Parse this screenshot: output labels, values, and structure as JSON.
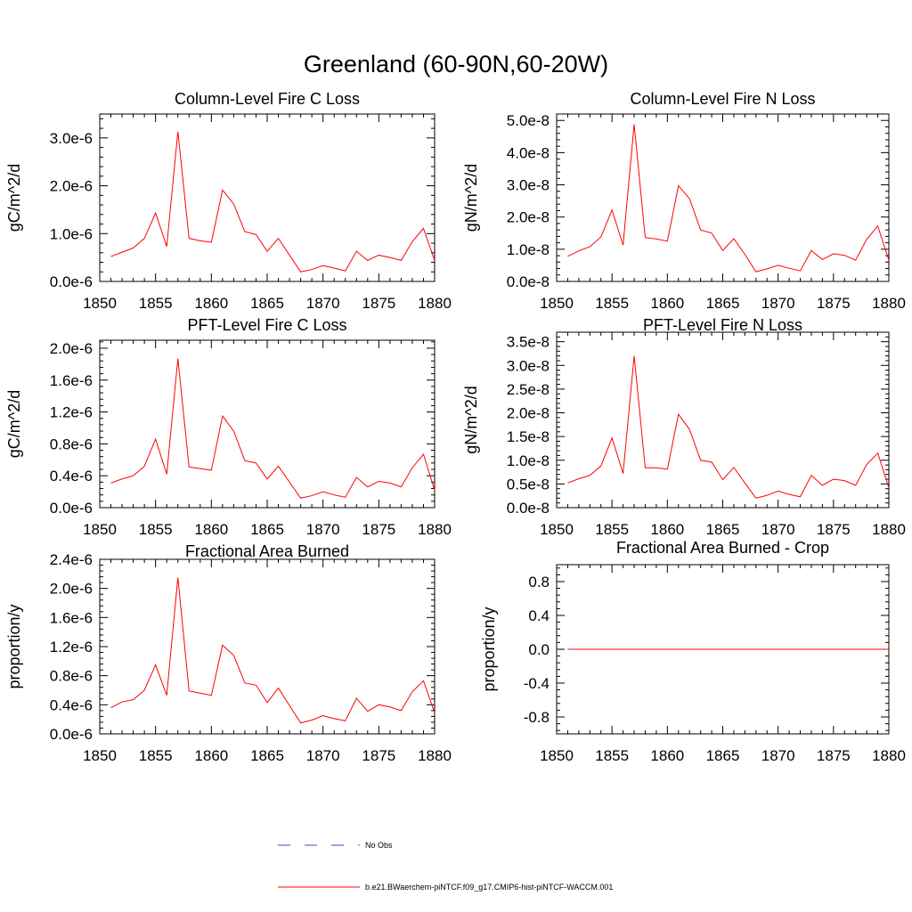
{
  "figure": {
    "title": "Greenland (60-90N,60-20W)"
  },
  "legend": {
    "entries": [
      {
        "label": "No Obs",
        "color": "#3b4bc8",
        "style": "dashed"
      },
      {
        "label": "b.e21.BWaerchem-piNTCF.f09_g17.CMIP6-hist-piNTCF-WACCM.001",
        "color": "#ff0000",
        "style": "solid"
      }
    ]
  },
  "chart_data": [
    {
      "type": "line",
      "title": "Column-Level Fire C Loss",
      "ylabel": "gC/m^2/d",
      "xlim": [
        1850,
        1880
      ],
      "ylim": [
        0,
        3.5e-06
      ],
      "xticks": [
        1850,
        1855,
        1860,
        1865,
        1870,
        1875,
        1880
      ],
      "yticks": [
        0,
        1e-06,
        2e-06,
        3e-06
      ],
      "ytick_labels": [
        "0.0e-6",
        "1.0e-6",
        "2.0e-6",
        "3.0e-6"
      ],
      "x": [
        1851,
        1852,
        1853,
        1854,
        1855,
        1856,
        1857,
        1858,
        1859,
        1860,
        1861,
        1862,
        1863,
        1864,
        1865,
        1866,
        1867,
        1868,
        1869,
        1870,
        1871,
        1872,
        1873,
        1874,
        1875,
        1876,
        1877,
        1878,
        1879,
        1880
      ],
      "series": [
        {
          "color": "#ff0000",
          "values": [
            5.2e-07,
            6.1e-07,
            7e-07,
            9e-07,
            1.43e-06,
            7.3e-07,
            3.13e-06,
            9e-07,
            8.5e-07,
            8.2e-07,
            1.91e-06,
            1.62e-06,
            1.04e-06,
            9.8e-07,
            6.3e-07,
            9e-07,
            5.5e-07,
            2e-07,
            2.5e-07,
            3.3e-07,
            2.8e-07,
            2.2e-07,
            6.3e-07,
            4.4e-07,
            5.5e-07,
            5e-07,
            4.4e-07,
            8.3e-07,
            1.11e-06,
            4.4e-07
          ]
        }
      ]
    },
    {
      "type": "line",
      "title": "Column-Level Fire N Loss",
      "ylabel": "gN/m^2/d",
      "xlim": [
        1850,
        1880
      ],
      "ylim": [
        0,
        5.2e-08
      ],
      "xticks": [
        1850,
        1855,
        1860,
        1865,
        1870,
        1875,
        1880
      ],
      "yticks": [
        0,
        1e-08,
        2e-08,
        3e-08,
        4e-08,
        5e-08
      ],
      "ytick_labels": [
        "0.0e-8",
        "1.0e-8",
        "2.0e-8",
        "3.0e-8",
        "4.0e-8",
        "5.0e-8"
      ],
      "x": [
        1851,
        1852,
        1853,
        1854,
        1855,
        1856,
        1857,
        1858,
        1859,
        1860,
        1861,
        1862,
        1863,
        1864,
        1865,
        1866,
        1867,
        1868,
        1869,
        1870,
        1871,
        1872,
        1873,
        1874,
        1875,
        1876,
        1877,
        1878,
        1879,
        1880
      ],
      "series": [
        {
          "color": "#ff0000",
          "values": [
            7.8e-09,
            9.5e-09,
            1.08e-08,
            1.38e-08,
            2.22e-08,
            1.13e-08,
            4.88e-08,
            1.36e-08,
            1.32e-08,
            1.25e-08,
            2.97e-08,
            2.57e-08,
            1.6e-08,
            1.5e-08,
            9.6e-09,
            1.33e-08,
            8.4e-09,
            3e-09,
            3.9e-09,
            5e-09,
            4.1e-09,
            3.3e-09,
            9.6e-09,
            6.8e-09,
            8.6e-09,
            8.1e-09,
            6.6e-09,
            1.31e-08,
            1.72e-08,
            6.6e-09
          ]
        }
      ]
    },
    {
      "type": "line",
      "title": "PFT-Level Fire C Loss",
      "ylabel": "gC/m^2/d",
      "xlim": [
        1850,
        1880
      ],
      "ylim": [
        0,
        2.1e-06
      ],
      "xticks": [
        1850,
        1855,
        1860,
        1865,
        1870,
        1875,
        1880
      ],
      "yticks": [
        0,
        4e-07,
        8e-07,
        1.2e-06,
        1.6e-06,
        2e-06
      ],
      "ytick_labels": [
        "0.0e-6",
        "0.4e-6",
        "0.8e-6",
        "1.2e-6",
        "1.6e-6",
        "2.0e-6"
      ],
      "x": [
        1851,
        1852,
        1853,
        1854,
        1855,
        1856,
        1857,
        1858,
        1859,
        1860,
        1861,
        1862,
        1863,
        1864,
        1865,
        1866,
        1867,
        1868,
        1869,
        1870,
        1871,
        1872,
        1873,
        1874,
        1875,
        1876,
        1877,
        1878,
        1879,
        1880
      ],
      "series": [
        {
          "color": "#ff0000",
          "values": [
            3.1e-07,
            3.6e-07,
            4e-07,
            5.2e-07,
            8.6e-07,
            4.2e-07,
            1.87e-06,
            5.1e-07,
            4.9e-07,
            4.7e-07,
            1.15e-06,
            9.6e-07,
            5.9e-07,
            5.6e-07,
            3.6e-07,
            5.2e-07,
            3.2e-07,
            1.2e-07,
            1.5e-07,
            2e-07,
            1.6e-07,
            1.3e-07,
            3.8e-07,
            2.6e-07,
            3.3e-07,
            3.1e-07,
            2.6e-07,
            5e-07,
            6.7e-07,
            2.2e-07
          ]
        }
      ]
    },
    {
      "type": "line",
      "title": "PFT-Level Fire N Loss",
      "ylabel": "gN/m^2/d",
      "xlim": [
        1850,
        1880
      ],
      "ylim": [
        0,
        3.7e-08
      ],
      "xticks": [
        1850,
        1855,
        1860,
        1865,
        1870,
        1875,
        1880
      ],
      "yticks": [
        0,
        5e-09,
        1e-08,
        1.5e-08,
        2e-08,
        2.5e-08,
        3e-08,
        3.5e-08
      ],
      "ytick_labels": [
        "0.0e-8",
        "0.5e-8",
        "1.0e-8",
        "1.5e-8",
        "2.0e-8",
        "2.5e-8",
        "3.0e-8",
        "3.5e-8"
      ],
      "x": [
        1851,
        1852,
        1853,
        1854,
        1855,
        1856,
        1857,
        1858,
        1859,
        1860,
        1861,
        1862,
        1863,
        1864,
        1865,
        1866,
        1867,
        1868,
        1869,
        1870,
        1871,
        1872,
        1873,
        1874,
        1875,
        1876,
        1877,
        1878,
        1879,
        1880
      ],
      "series": [
        {
          "color": "#ff0000",
          "values": [
            5.2e-09,
            6.1e-09,
            6.8e-09,
            8.8e-09,
            1.47e-08,
            7.2e-09,
            3.2e-08,
            8.4e-09,
            8.4e-09,
            8.1e-09,
            1.97e-08,
            1.65e-08,
            1e-08,
            9.6e-09,
            5.9e-09,
            8.5e-09,
            5.2e-09,
            2e-09,
            2.6e-09,
            3.5e-09,
            2.8e-09,
            2.3e-09,
            6.8e-09,
            4.7e-09,
            6e-09,
            5.7e-09,
            4.7e-09,
            9.1e-09,
            1.15e-08,
            4.2e-09
          ]
        }
      ]
    },
    {
      "type": "line",
      "title": "Fractional Area Burned",
      "ylabel": "proportion/y",
      "xlim": [
        1850,
        1880
      ],
      "ylim": [
        0,
        2.4e-06
      ],
      "xticks": [
        1850,
        1855,
        1860,
        1865,
        1870,
        1875,
        1880
      ],
      "yticks": [
        0,
        4e-07,
        8e-07,
        1.2e-06,
        1.6e-06,
        2e-06,
        2.4e-06
      ],
      "ytick_labels": [
        "0.0e-6",
        "0.4e-6",
        "0.8e-6",
        "1.2e-6",
        "1.6e-6",
        "2.0e-6",
        "2.4e-6"
      ],
      "x": [
        1851,
        1852,
        1853,
        1854,
        1855,
        1856,
        1857,
        1858,
        1859,
        1860,
        1861,
        1862,
        1863,
        1864,
        1865,
        1866,
        1867,
        1868,
        1869,
        1870,
        1871,
        1872,
        1873,
        1874,
        1875,
        1876,
        1877,
        1878,
        1879,
        1880
      ],
      "series": [
        {
          "color": "#ff0000",
          "values": [
            3.6e-07,
            4.4e-07,
            4.7e-07,
            6e-07,
            9.5e-07,
            5.3e-07,
            2.15e-06,
            5.9e-07,
            5.6e-07,
            5.3e-07,
            1.22e-06,
            1.08e-06,
            7e-07,
            6.7e-07,
            4.3e-07,
            6.3e-07,
            3.9e-07,
            1.5e-07,
            1.9e-07,
            2.5e-07,
            2.1e-07,
            1.8e-07,
            4.9e-07,
            3.1e-07,
            4e-07,
            3.7e-07,
            3.2e-07,
            5.8e-07,
            7.3e-07,
            2.9e-07
          ]
        }
      ]
    },
    {
      "type": "line",
      "title": "Fractional Area Burned - Crop",
      "ylabel": "proportion/y",
      "xlim": [
        1850,
        1880
      ],
      "ylim": [
        -1.0,
        1.0
      ],
      "xticks": [
        1850,
        1855,
        1860,
        1865,
        1870,
        1875,
        1880
      ],
      "yticks": [
        -0.8,
        -0.4,
        0,
        0.4,
        0.8
      ],
      "ytick_labels": [
        "-0.8",
        "-0.4",
        "0.0",
        "0.4",
        "0.8"
      ],
      "x": [
        1851,
        1880
      ],
      "series": [
        {
          "color": "#ff0000",
          "values": [
            0,
            0
          ]
        }
      ]
    }
  ]
}
